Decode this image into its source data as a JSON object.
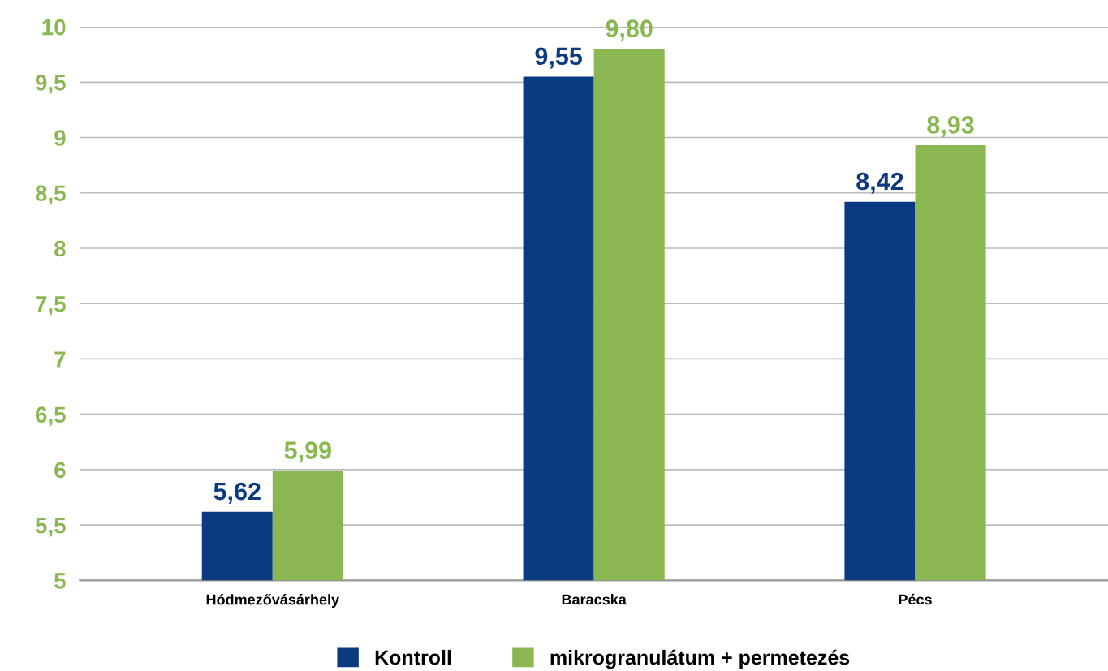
{
  "chart_data": {
    "type": "bar",
    "categories": [
      "Hódmezővásárhely",
      "Baracska",
      "Pécs"
    ],
    "series": [
      {
        "name": "Kontroll",
        "color": "#0a3a80",
        "values": [
          5.62,
          9.55,
          8.42
        ],
        "value_labels": [
          "5,62",
          "9,55",
          "8,42"
        ]
      },
      {
        "name": "mikrogranulátum + permetezés",
        "color": "#8ab752",
        "values": [
          5.99,
          9.8,
          8.93
        ],
        "value_labels": [
          "5,99",
          "9,80",
          "8,93"
        ]
      }
    ],
    "ylim": [
      5,
      10
    ],
    "yticks": [
      5,
      {
        "value": 5.5,
        "label": "5,5"
      },
      6,
      {
        "value": 6.5,
        "label": "6,5"
      },
      7,
      {
        "value": 7.5,
        "label": "7,5"
      },
      8,
      {
        "value": 8.5,
        "label": "8,5"
      },
      9,
      {
        "value": 9.5,
        "label": "9,5"
      },
      10
    ],
    "grid": "y",
    "legend": "bottom"
  }
}
